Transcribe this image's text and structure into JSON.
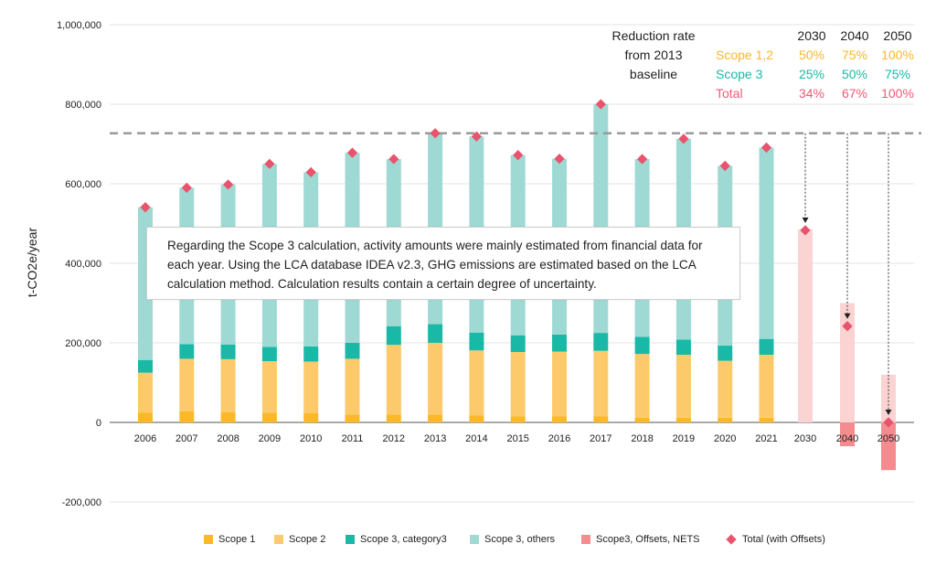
{
  "chart_data": {
    "type": "bar",
    "ylabel": "t-CO2e/year",
    "ylim": [
      -200000,
      1000000
    ],
    "yticks": [
      -200000,
      0,
      200000,
      400000,
      600000,
      800000,
      1000000
    ],
    "ytick_labels": [
      "-200,000",
      "0",
      "200,000",
      "400,000",
      "600,000",
      "800,000",
      "1,000,000"
    ],
    "categories": [
      "2006",
      "2007",
      "2008",
      "2009",
      "2010",
      "2011",
      "2012",
      "2013",
      "2014",
      "2015",
      "2016",
      "2017",
      "2018",
      "2019",
      "2020",
      "2021",
      "2030",
      "2040",
      "2050"
    ],
    "series": [
      {
        "name": "Scope 1",
        "color": "#fbb829",
        "values": [
          25000,
          28000,
          26000,
          24000,
          23000,
          20000,
          20000,
          20000,
          18000,
          15000,
          15000,
          15000,
          12000,
          12000,
          12000,
          12000,
          null,
          null,
          null
        ]
      },
      {
        "name": "Scope 2",
        "color": "#fcca6b",
        "values": [
          100000,
          132000,
          133000,
          130000,
          130000,
          140000,
          175000,
          180000,
          163000,
          162000,
          163000,
          165000,
          160000,
          158000,
          143000,
          158000,
          null,
          null,
          null
        ]
      },
      {
        "name": "Scope 3, category3",
        "color": "#1ab9a7",
        "values": [
          32000,
          37000,
          37000,
          36000,
          38000,
          40000,
          47000,
          47000,
          45000,
          42000,
          43000,
          45000,
          43000,
          38000,
          38000,
          40000,
          null,
          null,
          null
        ]
      },
      {
        "name": "Scope 3, others",
        "color": "#9fd9d3",
        "values": [
          384000,
          393000,
          402000,
          460000,
          438000,
          478000,
          420000,
          480000,
          493000,
          453000,
          442000,
          575000,
          447000,
          505000,
          452000,
          481000,
          null,
          null,
          null
        ]
      },
      {
        "name": "Scope3, Offsets, NETS",
        "color": "#f48b8f",
        "values": [
          null,
          null,
          null,
          null,
          null,
          null,
          null,
          null,
          null,
          null,
          null,
          null,
          null,
          null,
          null,
          null,
          null,
          -60000,
          -120000
        ]
      },
      {
        "name": "Total (with Offsets)",
        "color": "#e8546d",
        "values": [
          541000,
          590000,
          598000,
          650000,
          629000,
          678000,
          662000,
          727000,
          719000,
          672000,
          663000,
          800000,
          662000,
          713000,
          645000,
          691000,
          483000,
          242000,
          0
        ]
      }
    ],
    "projection_bars": {
      "color": "#fad3d2",
      "categories": [
        "2030",
        "2040",
        "2050"
      ],
      "values": [
        485000,
        300000,
        120000
      ]
    },
    "baseline_2013": 727000,
    "reduction_table": {
      "title": [
        "Reduction rate",
        "from 2013",
        "baseline"
      ],
      "years": [
        "2030",
        "2040",
        "2050"
      ],
      "rows": [
        {
          "label": "Scope 1,2",
          "color": "#fbb829",
          "values": [
            "50%",
            "75%",
            "100%"
          ]
        },
        {
          "label": "Scope 3",
          "color": "#1ab9a7",
          "values": [
            "25%",
            "50%",
            "75%"
          ]
        },
        {
          "label": "Total",
          "color": "#ef5a74",
          "values": [
            "34%",
            "67%",
            "100%"
          ]
        }
      ]
    }
  },
  "note": "Regarding the Scope 3 calculation, activity amounts were mainly estimated from financial data for each year. Using the LCA database IDEA v2.3, GHG emissions are estimated based on the LCA calculation method. Calculation results contain a certain degree of uncertainty.",
  "legend": [
    {
      "label": "Scope 1",
      "color": "#fbb829",
      "marker": "square"
    },
    {
      "label": "Scope 2",
      "color": "#fcca6b",
      "marker": "square"
    },
    {
      "label": "Scope 3, category3",
      "color": "#1ab9a7",
      "marker": "square"
    },
    {
      "label": "Scope 3, others",
      "color": "#9fd9d3",
      "marker": "square"
    },
    {
      "label": "Scope3, Offsets, NETS",
      "color": "#f48b8f",
      "marker": "square"
    },
    {
      "label": "Total (with Offsets)",
      "color": "#e8546d",
      "marker": "diamond"
    }
  ]
}
